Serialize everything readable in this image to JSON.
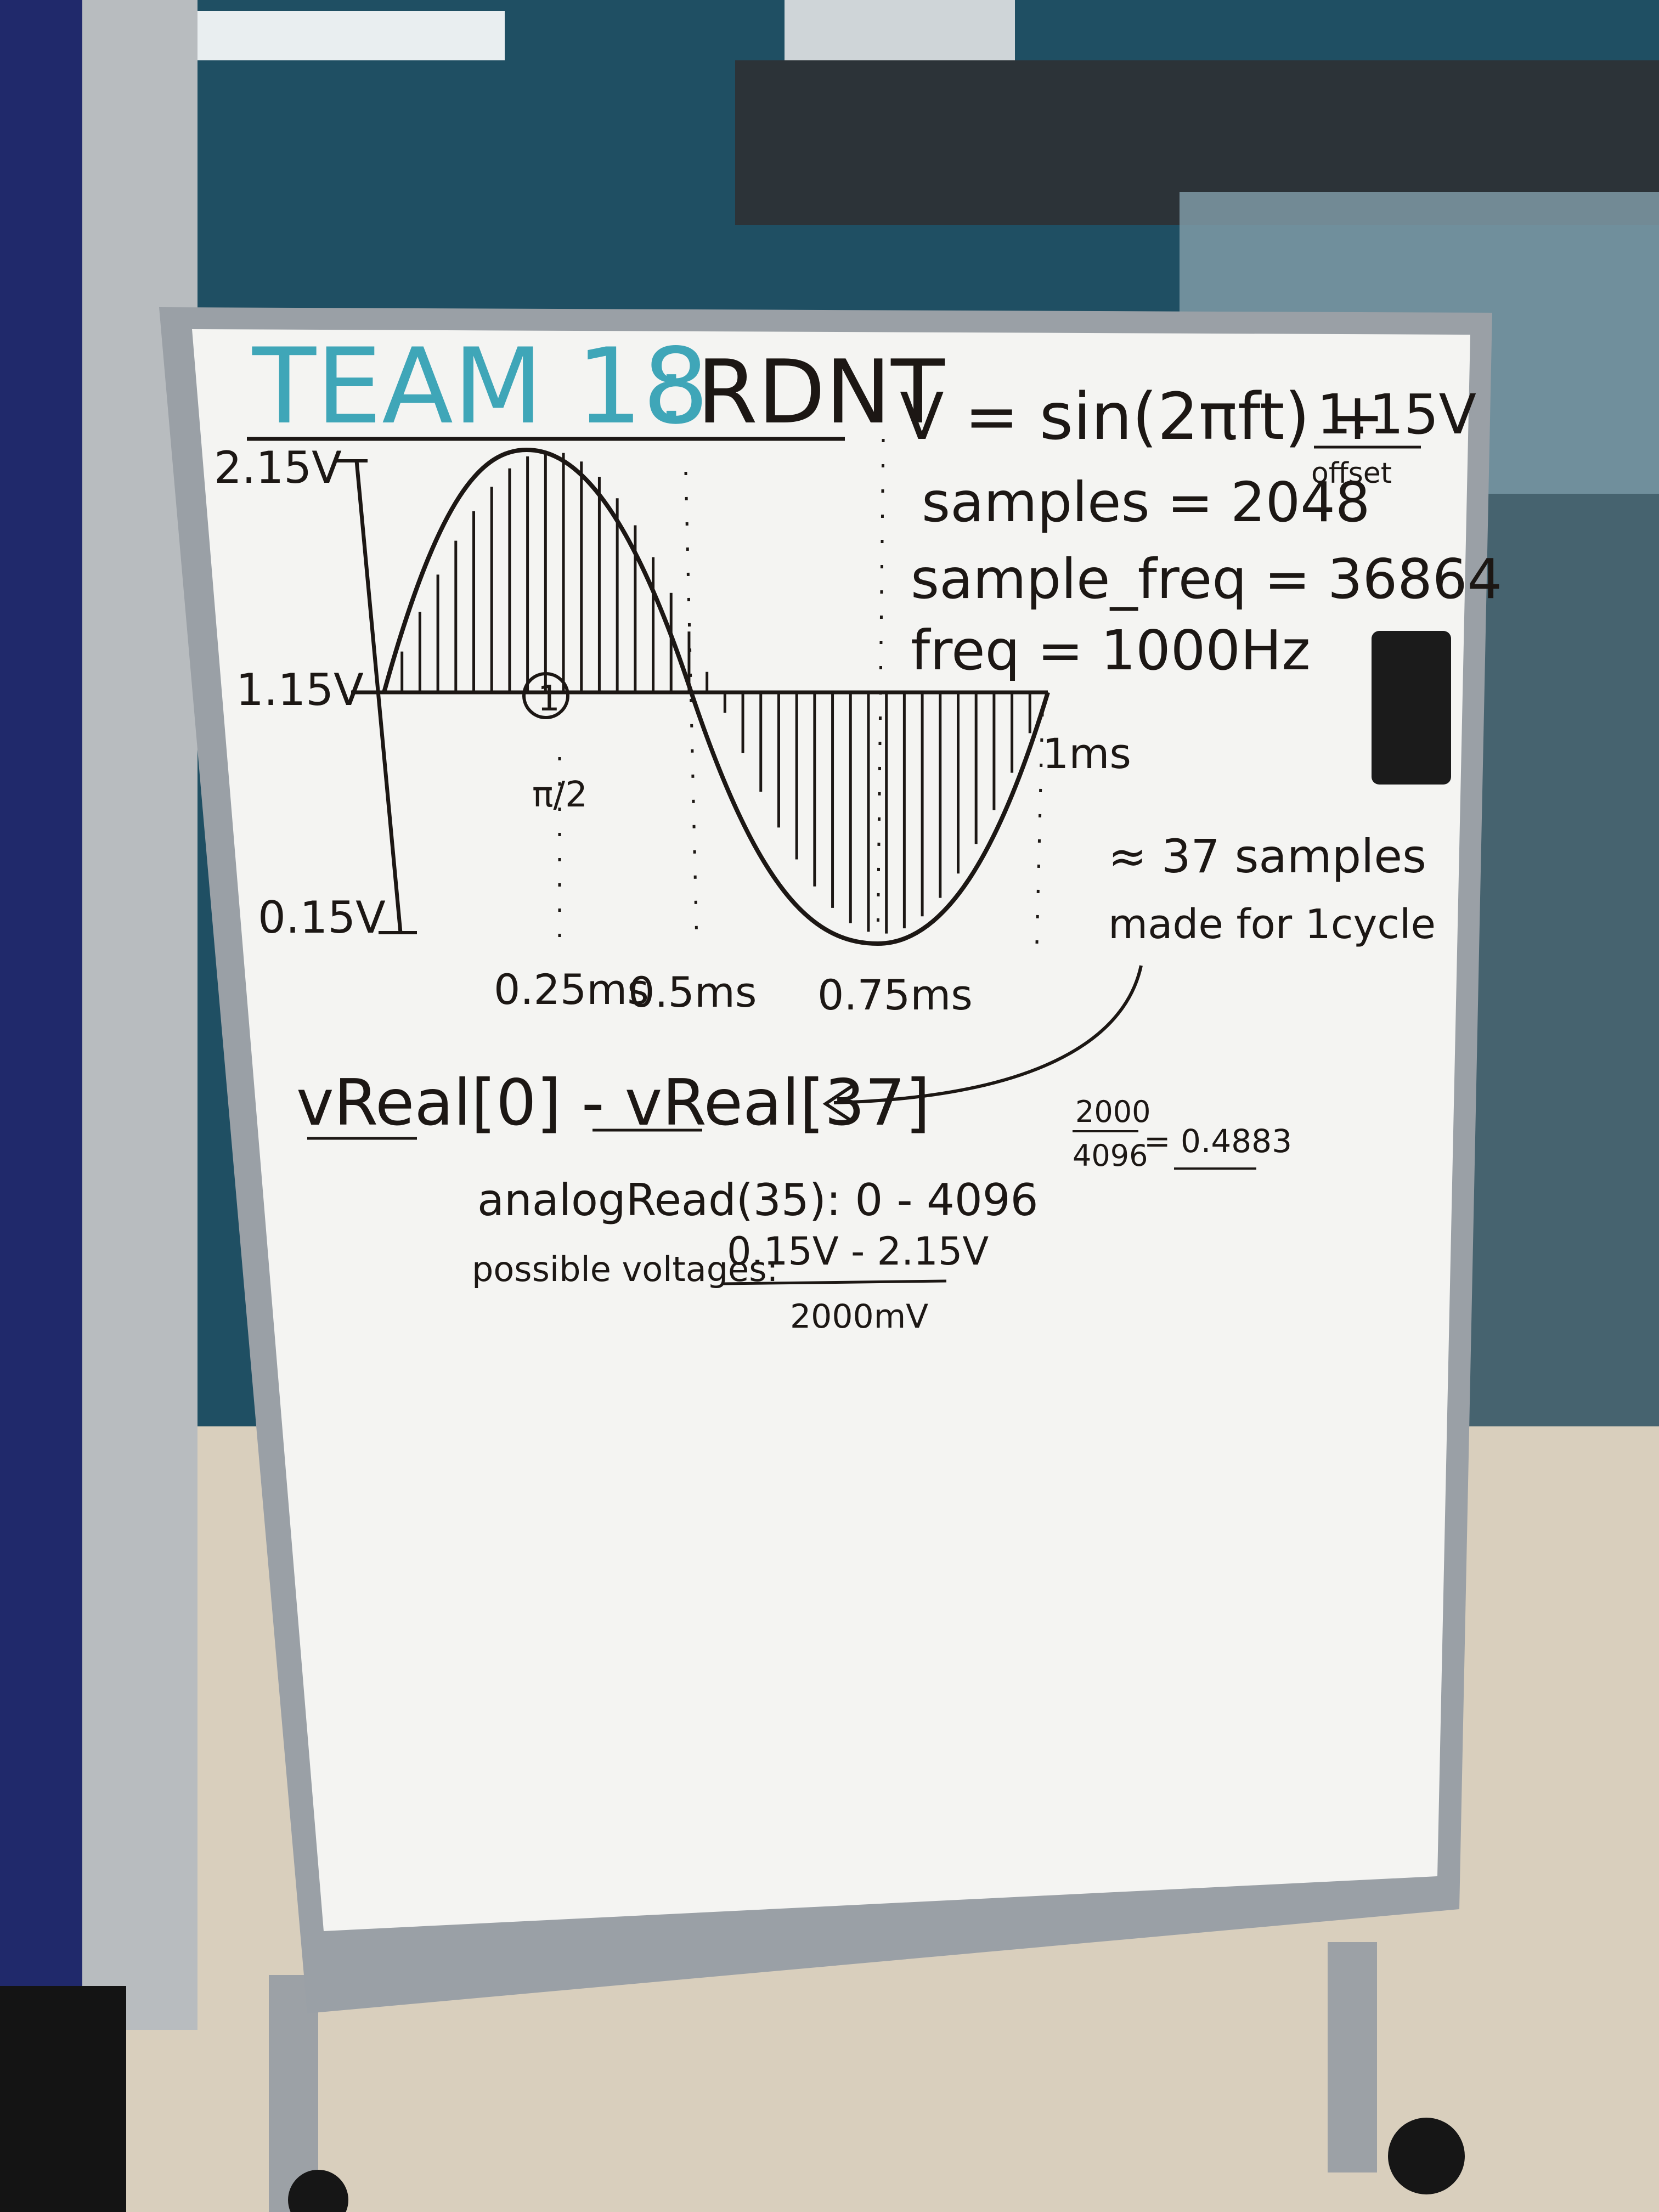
{
  "whiteboard": {
    "title": {
      "team": "TEAM 18",
      "colon": ":",
      "name": "RDNT"
    },
    "equation": {
      "formula": "V = sin(2πft) +",
      "offset_value": "1.15V",
      "offset_label": "offset"
    },
    "params": {
      "samples": "samples = 2048",
      "sample_freq": "sample_freq = 36864",
      "freq": "freq = 1000Hz"
    },
    "graph": {
      "y_labels": [
        "2.15V",
        "1.15V",
        "0.15V"
      ],
      "x_labels": [
        "0.25ms",
        "0.5ms",
        "0.75ms"
      ],
      "end_label": "1ms",
      "marked_point": "1",
      "marked_point_sub": "π/2"
    },
    "samples_note": {
      "line1": "≈ 37 samples",
      "line2": "made for 1cycle"
    },
    "array_range": "vReal[0] - vReal[37]",
    "division": {
      "numerator": "2000",
      "denominator": "4096",
      "result": "= 0.4883"
    },
    "analog_read": "analogRead(35): 0 - 4096",
    "possible_voltages": {
      "label": "possible voltages:",
      "range": "0.15V - 2.15V",
      "span": "2000mV"
    }
  },
  "colors": {
    "wall": "#1f4f63",
    "board": "#f4f4f2",
    "frame": "#9aa0a6",
    "marker": "#1c1714",
    "title_teal": "#3fa6b8",
    "floor": "#d9cfbd",
    "panel": "#20296b"
  }
}
